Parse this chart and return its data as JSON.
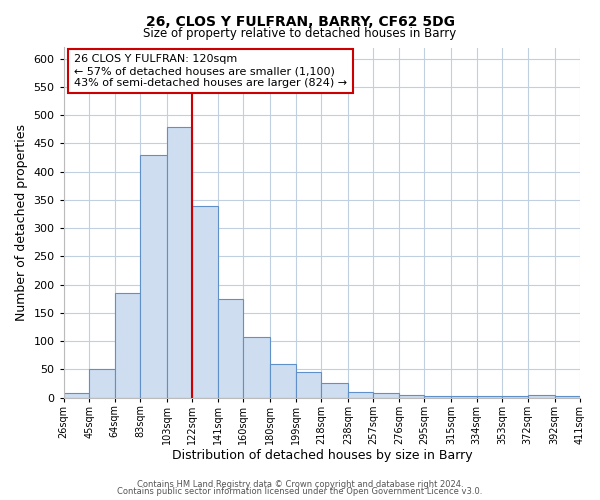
{
  "title": "26, CLOS Y FULFRAN, BARRY, CF62 5DG",
  "subtitle": "Size of property relative to detached houses in Barry",
  "xlabel": "Distribution of detached houses by size in Barry",
  "ylabel": "Number of detached properties",
  "bar_color": "#cfddf0",
  "bar_edge_color": "#6090c8",
  "bin_labels": [
    "26sqm",
    "45sqm",
    "64sqm",
    "83sqm",
    "103sqm",
    "122sqm",
    "141sqm",
    "160sqm",
    "180sqm",
    "199sqm",
    "218sqm",
    "238sqm",
    "257sqm",
    "276sqm",
    "295sqm",
    "315sqm",
    "334sqm",
    "353sqm",
    "372sqm",
    "392sqm",
    "411sqm"
  ],
  "bin_edges": [
    26,
    45,
    64,
    83,
    103,
    122,
    141,
    160,
    180,
    199,
    218,
    238,
    257,
    276,
    295,
    315,
    334,
    353,
    372,
    392,
    411
  ],
  "bar_heights": [
    8,
    50,
    185,
    430,
    480,
    340,
    175,
    108,
    60,
    45,
    25,
    10,
    8,
    5,
    3,
    3,
    3,
    3,
    5,
    3
  ],
  "vline_x": 122,
  "vline_color": "#cc0000",
  "ylim": [
    0,
    620
  ],
  "yticks": [
    0,
    50,
    100,
    150,
    200,
    250,
    300,
    350,
    400,
    450,
    500,
    550,
    600
  ],
  "annotation_title": "26 CLOS Y FULFRAN: 120sqm",
  "annotation_line1": "← 57% of detached houses are smaller (1,100)",
  "annotation_line2": "43% of semi-detached houses are larger (824) →",
  "footer1": "Contains HM Land Registry data © Crown copyright and database right 2024.",
  "footer2": "Contains public sector information licensed under the Open Government Licence v3.0.",
  "background_color": "#ffffff",
  "grid_color": "#c0d0e0"
}
